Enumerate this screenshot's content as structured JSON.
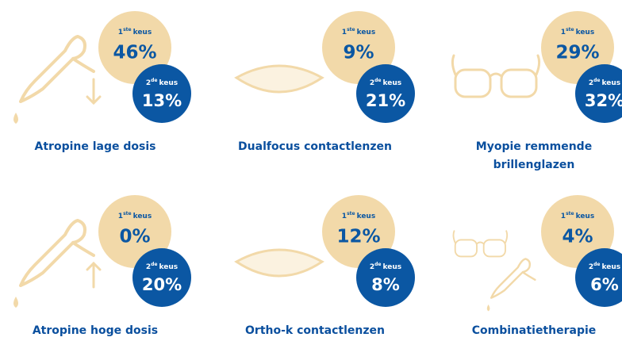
{
  "items": [
    {
      "label": [
        "Atropine lage dosis"
      ],
      "first": {
        "num": "1",
        "suffix": "ste",
        "word": "keus",
        "value": "46%"
      },
      "second": {
        "num": "2",
        "suffix": "de",
        "word": "keus",
        "value": "13%"
      }
    },
    {
      "label": [
        "Dualfocus contactlenzen"
      ],
      "first": {
        "num": "1",
        "suffix": "ste",
        "word": "keus",
        "value": "9%"
      },
      "second": {
        "num": "2",
        "suffix": "de",
        "word": "keus",
        "value": "21%"
      }
    },
    {
      "label": [
        "Myopie remmende",
        "brillenglazen"
      ],
      "first": {
        "num": "1",
        "suffix": "ste",
        "word": "keus",
        "value": "29%"
      },
      "second": {
        "num": "2",
        "suffix": "de",
        "word": "keus",
        "value": "32%"
      }
    },
    {
      "label": [
        "Atropine hoge dosis"
      ],
      "first": {
        "num": "1",
        "suffix": "ste",
        "word": "keus",
        "value": "0%"
      },
      "second": {
        "num": "2",
        "suffix": "de",
        "word": "keus",
        "value": "20%"
      }
    },
    {
      "label": [
        "Ortho-k contactlenzen"
      ],
      "first": {
        "num": "1",
        "suffix": "ste",
        "word": "keus",
        "value": "12%"
      },
      "second": {
        "num": "2",
        "suffix": "de",
        "word": "keus",
        "value": "8%"
      }
    },
    {
      "label": [
        "Combinatietherapie"
      ],
      "first": {
        "num": "1",
        "suffix": "ste",
        "word": "keus",
        "value": "4%"
      },
      "second": {
        "num": "2",
        "suffix": "de",
        "word": "keus",
        "value": "6%"
      }
    }
  ]
}
